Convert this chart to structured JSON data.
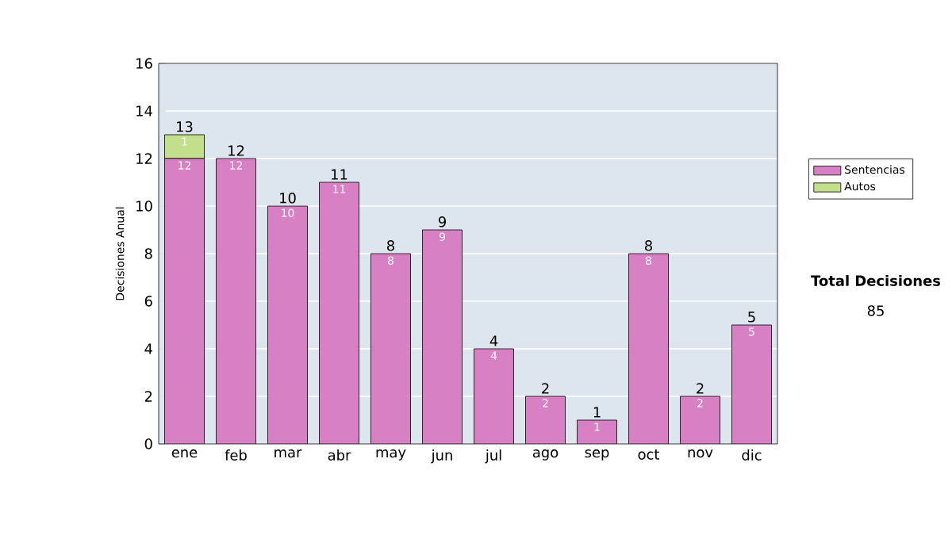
{
  "chart_data": {
    "type": "bar",
    "stacked": true,
    "ylabel": "Decisiones Anual",
    "categories": [
      "ene",
      "feb",
      "mar",
      "abr",
      "may",
      "jun",
      "jul",
      "ago",
      "sep",
      "oct",
      "nov",
      "dic"
    ],
    "series": [
      {
        "name": "Sentencias",
        "color": "#d880c4",
        "values": [
          12,
          12,
          10,
          11,
          8,
          9,
          4,
          2,
          1,
          8,
          2,
          5
        ],
        "value_labels": [
          "12",
          "12",
          "10",
          "11",
          "8",
          "9",
          "4",
          "2",
          "1",
          "8",
          "2",
          "5"
        ]
      },
      {
        "name": "Autos",
        "color": "#c4df8c",
        "values": [
          1,
          0,
          0,
          0,
          0,
          0,
          0,
          0,
          0,
          0,
          0,
          0
        ],
        "value_labels": [
          "1",
          null,
          null,
          null,
          null,
          null,
          null,
          null,
          null,
          null,
          null,
          null
        ]
      }
    ],
    "totals": [
      "13",
      "12",
      "10",
      "11",
      "8",
      "9",
      "4",
      "2",
      "1",
      "8",
      "2",
      "5"
    ],
    "ylim": [
      0,
      16
    ],
    "yticks": [
      0,
      2,
      4,
      6,
      8,
      10,
      12,
      14,
      16
    ],
    "grid": "y",
    "legend": "right",
    "annotations": [
      "Total Decisiones",
      "85"
    ]
  }
}
